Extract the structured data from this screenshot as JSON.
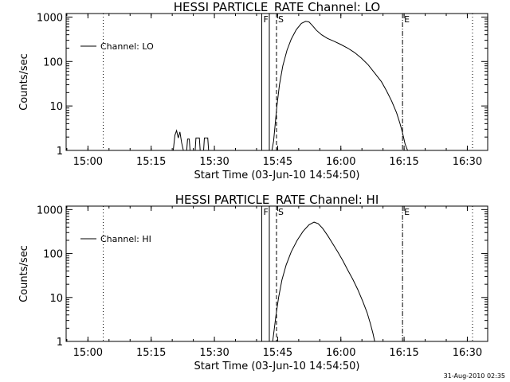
{
  "timestamp": "31-Aug-2010 02:35",
  "chart_data": [
    {
      "type": "line",
      "title": "HESSI PARTICLE_RATE Channel: LO",
      "xlabel": "Start Time (03-Jun-10 14:54:50)",
      "ylabel": "Counts/sec",
      "y_scale": "log",
      "x_unit": "minutes after 14:54:50",
      "xlim": [
        0,
        100
      ],
      "ylim": [
        1,
        1200
      ],
      "x_ticks": [
        {
          "x": 5.17,
          "label": "15:00"
        },
        {
          "x": 20.17,
          "label": "15:15"
        },
        {
          "x": 35.17,
          "label": "15:30"
        },
        {
          "x": 50.17,
          "label": "15:45"
        },
        {
          "x": 65.17,
          "label": "16:00"
        },
        {
          "x": 80.17,
          "label": "16:15"
        },
        {
          "x": 95.17,
          "label": "16:30"
        }
      ],
      "y_ticks": [
        {
          "y": 1,
          "label": "1"
        },
        {
          "y": 10,
          "label": "10"
        },
        {
          "y": 100,
          "label": "100"
        },
        {
          "y": 1000,
          "label": "1000"
        }
      ],
      "legend": {
        "label": "Channel: LO",
        "position": "top-left"
      },
      "markers": [
        {
          "x": 8.8,
          "style": "dotted",
          "label": ""
        },
        {
          "x": 46.4,
          "style": "solid",
          "label": "F"
        },
        {
          "x": 48.2,
          "style": "solid",
          "label": ""
        },
        {
          "x": 49.9,
          "style": "dashed",
          "label": "S"
        },
        {
          "x": 79.8,
          "style": "dashdot",
          "label": "E"
        },
        {
          "x": 96.4,
          "style": "dotted",
          "label": ""
        }
      ],
      "series": [
        {
          "points": [
            [
              25.4,
              1
            ],
            [
              25.8,
              2.2
            ],
            [
              26.2,
              2.8
            ],
            [
              26.6,
              1.9
            ],
            [
              27.0,
              2.6
            ],
            [
              27.4,
              1.5
            ],
            [
              27.8,
              1
            ],
            [
              28.6,
              1
            ],
            [
              28.8,
              1.8
            ],
            [
              29.2,
              1.8
            ],
            [
              29.4,
              1
            ],
            [
              30.6,
              1
            ],
            [
              30.8,
              1.9
            ],
            [
              31.6,
              1.9
            ],
            [
              31.8,
              1
            ],
            [
              32.6,
              1
            ],
            [
              32.8,
              1.9
            ],
            [
              33.6,
              1.9
            ],
            [
              33.8,
              1
            ]
          ]
        },
        {
          "points": [
            [
              48.8,
              1
            ],
            [
              49.2,
              1.6
            ],
            [
              49.6,
              4
            ],
            [
              50.0,
              10
            ],
            [
              50.6,
              30
            ],
            [
              51.4,
              80
            ],
            [
              52.4,
              180
            ],
            [
              53.4,
              320
            ],
            [
              54.6,
              520
            ],
            [
              55.8,
              720
            ],
            [
              56.8,
              800
            ],
            [
              57.6,
              780
            ],
            [
              58.4,
              650
            ],
            [
              59.4,
              500
            ],
            [
              60.6,
              400
            ],
            [
              62.0,
              330
            ],
            [
              63.6,
              285
            ],
            [
              65.2,
              240
            ],
            [
              66.8,
              200
            ],
            [
              68.4,
              160
            ],
            [
              70.0,
              120
            ],
            [
              71.6,
              85
            ],
            [
              73.2,
              55
            ],
            [
              74.8,
              35
            ],
            [
              76.0,
              22
            ],
            [
              77.2,
              13
            ],
            [
              78.4,
              7
            ],
            [
              79.2,
              4
            ],
            [
              79.8,
              2.5
            ],
            [
              80.4,
              1.4
            ],
            [
              81.0,
              1
            ]
          ]
        }
      ]
    },
    {
      "type": "line",
      "title": "HESSI PARTICLE_RATE Channel: HI",
      "xlabel": "Start Time (03-Jun-10 14:54:50)",
      "ylabel": "Counts/sec",
      "y_scale": "log",
      "x_unit": "minutes after 14:54:50",
      "xlim": [
        0,
        100
      ],
      "ylim": [
        1,
        1200
      ],
      "x_ticks": [
        {
          "x": 5.17,
          "label": "15:00"
        },
        {
          "x": 20.17,
          "label": "15:15"
        },
        {
          "x": 35.17,
          "label": "15:30"
        },
        {
          "x": 50.17,
          "label": "15:45"
        },
        {
          "x": 65.17,
          "label": "16:00"
        },
        {
          "x": 80.17,
          "label": "16:15"
        },
        {
          "x": 95.17,
          "label": "16:30"
        }
      ],
      "y_ticks": [
        {
          "y": 1,
          "label": "1"
        },
        {
          "y": 10,
          "label": "10"
        },
        {
          "y": 100,
          "label": "100"
        },
        {
          "y": 1000,
          "label": "1000"
        }
      ],
      "legend": {
        "label": "Channel: HI",
        "position": "top-left"
      },
      "markers": [
        {
          "x": 8.8,
          "style": "dotted",
          "label": ""
        },
        {
          "x": 46.4,
          "style": "solid",
          "label": "F"
        },
        {
          "x": 48.2,
          "style": "solid",
          "label": ""
        },
        {
          "x": 49.9,
          "style": "dashed",
          "label": "S"
        },
        {
          "x": 79.8,
          "style": "dashdot",
          "label": "E"
        },
        {
          "x": 96.4,
          "style": "dotted",
          "label": ""
        }
      ],
      "series": [
        {
          "points": [
            [
              49.0,
              1
            ],
            [
              49.4,
              2
            ],
            [
              49.8,
              4
            ],
            [
              50.4,
              10
            ],
            [
              51.2,
              25
            ],
            [
              52.2,
              55
            ],
            [
              53.4,
              110
            ],
            [
              54.8,
              200
            ],
            [
              56.2,
              320
            ],
            [
              57.6,
              450
            ],
            [
              58.8,
              520
            ],
            [
              59.8,
              480
            ],
            [
              60.8,
              380
            ],
            [
              62.0,
              260
            ],
            [
              63.2,
              170
            ],
            [
              64.4,
              110
            ],
            [
              65.6,
              70
            ],
            [
              66.8,
              42
            ],
            [
              68.0,
              26
            ],
            [
              69.2,
              15
            ],
            [
              70.4,
              8
            ],
            [
              71.4,
              4.5
            ],
            [
              72.2,
              2.5
            ],
            [
              72.8,
              1.5
            ],
            [
              73.2,
              1
            ]
          ]
        }
      ]
    }
  ]
}
